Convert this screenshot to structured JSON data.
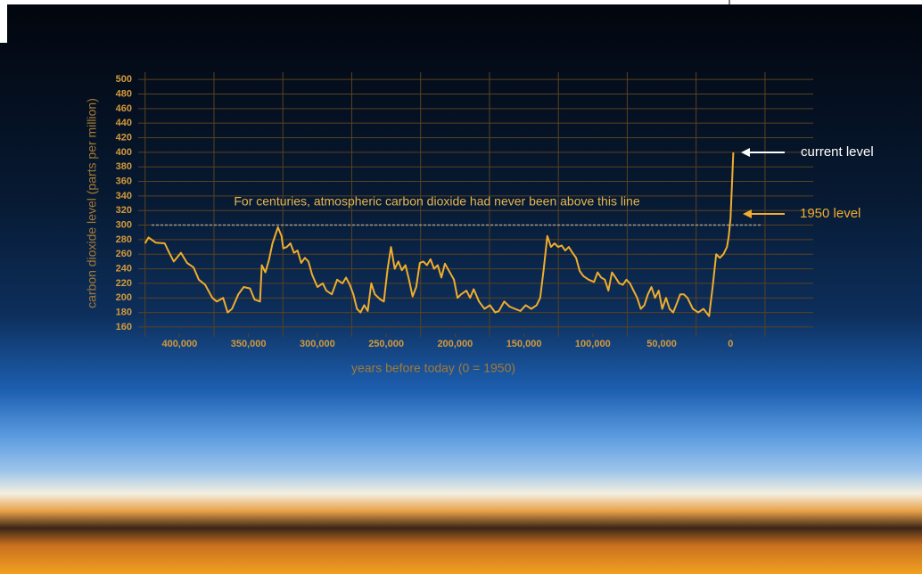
{
  "chart_data": {
    "type": "line",
    "x_label": "years before today (0 = 1950)",
    "y_label": "carbon dioxide level (parts per million)",
    "annotations": {
      "threshold_text": "For centuries, atmospheric carbon dioxide had never been above this line",
      "current": "current level",
      "level_1950": "1950 level"
    },
    "threshold": 300,
    "color": "#f0ad2e",
    "xlim": [
      430000,
      -60000
    ],
    "ylim": [
      155,
      510
    ],
    "xticks": [
      {
        "value": 400000,
        "label": "400,000"
      },
      {
        "value": 350000,
        "label": "350,000"
      },
      {
        "value": 300000,
        "label": "300,000"
      },
      {
        "value": 250000,
        "label": "250,000"
      },
      {
        "value": 200000,
        "label": "200,000"
      },
      {
        "value": 150000,
        "label": "150,000"
      },
      {
        "value": 100000,
        "label": "100,000"
      },
      {
        "value": 50000,
        "label": "50,000"
      },
      0
    ],
    "x_gridlines": [
      425000,
      375000,
      325000,
      275000,
      225000,
      175000,
      125000,
      75000,
      25000,
      -25000
    ],
    "yticks": [
      160,
      180,
      200,
      220,
      240,
      260,
      280,
      300,
      320,
      340,
      360,
      380,
      400,
      420,
      440,
      460,
      480,
      500
    ],
    "grid": true,
    "x": [
      425000,
      422500,
      417300,
      410800,
      407500,
      404200,
      399000,
      394500,
      389900,
      386000,
      381400,
      376200,
      372900,
      368400,
      365100,
      361900,
      357300,
      353400,
      348800,
      345600,
      341600,
      340300,
      337700,
      335100,
      332500,
      328600,
      326000,
      324700,
      322100,
      319500,
      316900,
      314300,
      311700,
      309000,
      306400,
      303800,
      299900,
      296000,
      293400,
      289500,
      285600,
      281700,
      279100,
      276400,
      273800,
      271200,
      268600,
      266000,
      263400,
      260800,
      258200,
      254300,
      251700,
      249100,
      246500,
      243800,
      241200,
      238600,
      236000,
      233400,
      230800,
      228200,
      225600,
      223000,
      220400,
      217800,
      215200,
      212600,
      209900,
      207300,
      204700,
      200800,
      198200,
      195600,
      191700,
      189100,
      186500,
      182600,
      178600,
      174700,
      170800,
      168200,
      164300,
      160400,
      156500,
      152600,
      148700,
      144700,
      140800,
      138200,
      135600,
      133000,
      130400,
      127800,
      125200,
      122600,
      120000,
      117400,
      114800,
      112100,
      109500,
      106900,
      103000,
      99100,
      96500,
      93900,
      91300,
      88700,
      86100,
      83500,
      80800,
      78200,
      75600,
      73000,
      70400,
      67800,
      65200,
      62600,
      60000,
      57400,
      54800,
      52200,
      49600,
      46900,
      44300,
      41700,
      39100,
      36500,
      33900,
      31300,
      27400,
      23500,
      19600,
      15600,
      13000,
      10400,
      7800,
      5200,
      2600,
      1300,
      0,
      -2000
    ],
    "values": [
      275,
      283,
      276,
      275,
      262,
      250,
      262,
      248,
      242,
      225,
      218,
      200,
      195,
      200,
      180,
      185,
      205,
      215,
      213,
      198,
      195,
      245,
      235,
      252,
      275,
      297,
      285,
      268,
      270,
      275,
      262,
      265,
      248,
      255,
      250,
      232,
      215,
      220,
      210,
      205,
      225,
      220,
      228,
      218,
      205,
      185,
      180,
      190,
      182,
      220,
      205,
      198,
      195,
      238,
      270,
      240,
      250,
      238,
      245,
      225,
      202,
      215,
      248,
      250,
      245,
      253,
      240,
      245,
      228,
      247,
      238,
      225,
      200,
      205,
      210,
      200,
      212,
      195,
      185,
      190,
      180,
      182,
      195,
      188,
      185,
      182,
      190,
      185,
      190,
      200,
      240,
      285,
      270,
      275,
      270,
      272,
      265,
      270,
      262,
      255,
      237,
      230,
      225,
      222,
      235,
      228,
      225,
      210,
      235,
      228,
      220,
      218,
      225,
      220,
      210,
      200,
      185,
      190,
      205,
      215,
      200,
      210,
      185,
      200,
      185,
      180,
      192,
      205,
      205,
      200,
      185,
      180,
      185,
      175,
      215,
      260,
      255,
      260,
      270,
      285,
      310,
      400
    ]
  }
}
